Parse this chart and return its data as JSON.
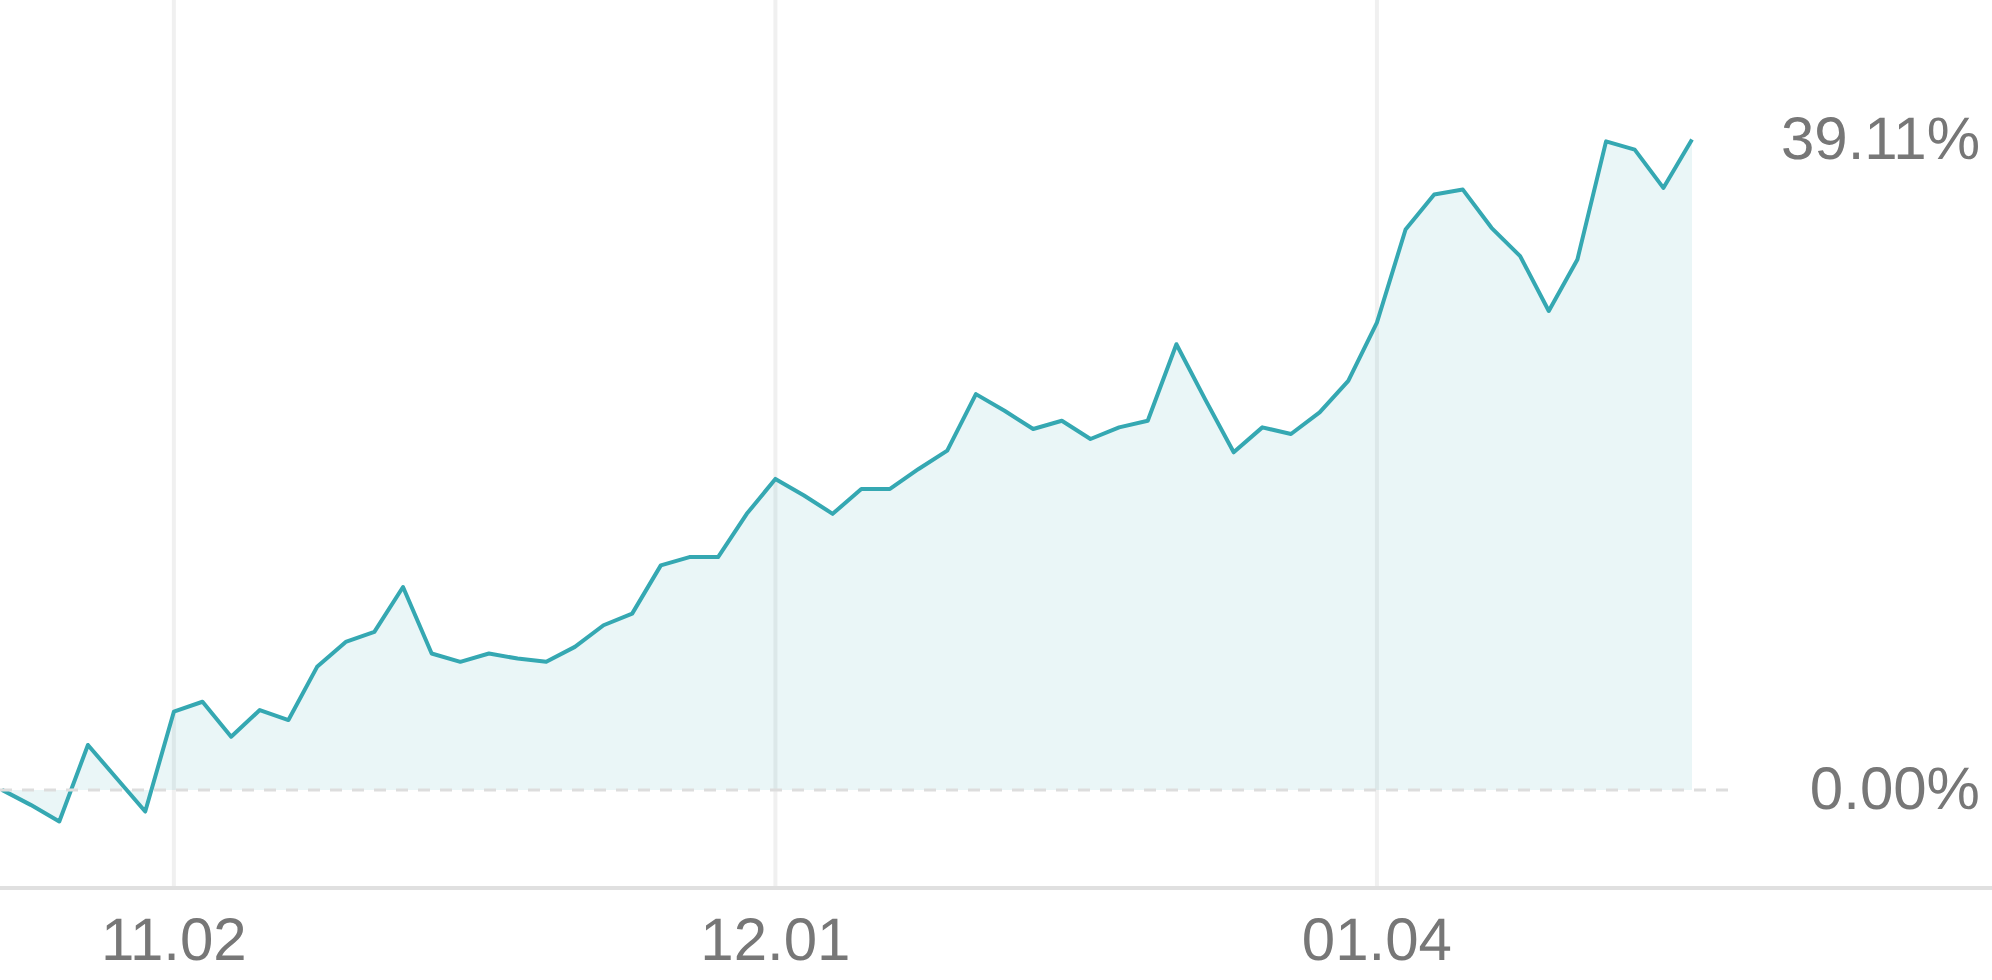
{
  "chart_data": {
    "type": "area",
    "categories": [
      null,
      null,
      null,
      null,
      null,
      null,
      "11.02",
      null,
      null,
      null,
      null,
      null,
      null,
      null,
      null,
      null,
      null,
      null,
      null,
      null,
      null,
      null,
      null,
      null,
      null,
      null,
      null,
      "12.01",
      null,
      null,
      null,
      null,
      null,
      null,
      null,
      null,
      null,
      null,
      null,
      null,
      null,
      null,
      null,
      null,
      null,
      null,
      null,
      null,
      "01.04",
      null,
      null,
      null,
      null,
      null,
      null,
      null,
      null,
      null,
      null,
      null
    ],
    "series": [
      {
        "color": "#35a8b2",
        "values": [
          0.0,
          -0.9,
          -1.9,
          2.7,
          0.7,
          -1.3,
          4.7,
          5.3,
          3.2,
          4.8,
          4.2,
          7.4,
          8.9,
          9.5,
          12.2,
          8.2,
          7.7,
          8.2,
          7.9,
          7.7,
          8.6,
          9.9,
          10.6,
          13.5,
          14.0,
          14.0,
          16.6,
          18.7,
          17.7,
          16.6,
          18.1,
          18.1,
          19.3,
          20.4,
          23.8,
          22.8,
          21.7,
          22.2,
          21.1,
          21.8,
          22.2,
          26.8,
          23.5,
          20.3,
          21.8,
          21.4,
          22.7,
          24.6,
          28.1,
          33.7,
          35.8,
          36.1,
          33.8,
          32.1,
          28.8,
          31.9,
          39.0,
          38.5,
          36.2,
          39.11
        ]
      }
    ],
    "yticks": [
      {
        "value": 0,
        "label": "0.00%"
      },
      {
        "value": 39.11,
        "label": "39.11%"
      }
    ],
    "ylim": [
      -5.9,
      47.5
    ],
    "grid": "x",
    "ref_lines": [
      {
        "axis": "y",
        "value": 0,
        "line_style": "dashed",
        "color": "#dddddd"
      }
    ]
  }
}
